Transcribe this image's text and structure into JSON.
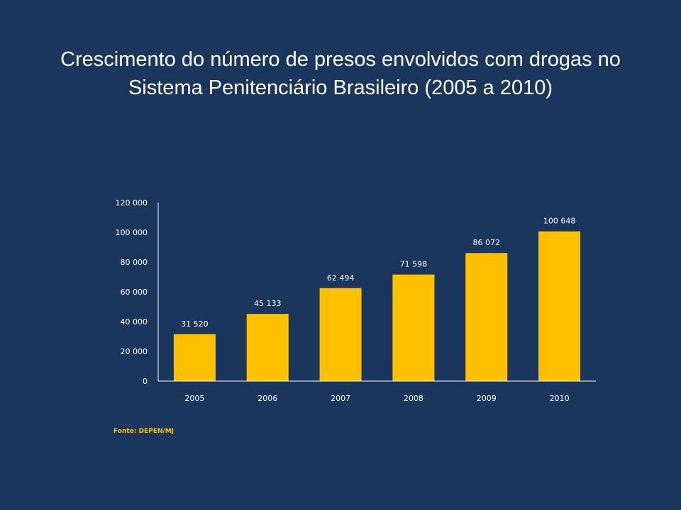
{
  "slide": {
    "title_line1": "Crescimento do número de presos envolvidos com drogas no",
    "title_line2": "Sistema Penitenciário Brasileiro (2005 a 2010)",
    "source": "Fonte: DEPEN/MJ"
  },
  "colors": {
    "background": "#1b365d",
    "bar": "#ffc000",
    "text": "#ffffff",
    "axis": "#ffffff",
    "source": "#ffc000"
  },
  "chart_data": {
    "type": "bar",
    "title": "Crescimento do número de presos envolvidos com drogas no Sistema Penitenciário Brasileiro (2005 a 2010)",
    "xlabel": "",
    "ylabel": "",
    "categories": [
      "2005",
      "2006",
      "2007",
      "2008",
      "2009",
      "2010"
    ],
    "values": [
      31520,
      45133,
      62494,
      71598,
      86072,
      100648
    ],
    "data_labels": [
      "31 520",
      "45 133",
      "62 494",
      "71 598",
      "86 072",
      "100 648"
    ],
    "ylim": [
      0,
      120000
    ],
    "yticks": [
      0,
      20000,
      40000,
      60000,
      80000,
      100000,
      120000
    ],
    "ytick_labels": [
      "0",
      "20 000",
      "40 000",
      "60 000",
      "80 000",
      "100 000",
      "120 000"
    ],
    "grid": false,
    "legend": "none"
  }
}
